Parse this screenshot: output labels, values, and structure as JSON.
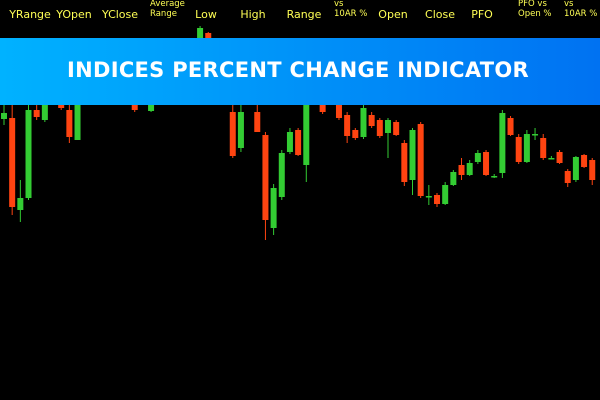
{
  "header": {
    "columns": [
      [
        "YRange"
      ],
      [
        "YOpen"
      ],
      [
        "YClose"
      ],
      [
        "Average",
        "Range"
      ],
      [
        "Low"
      ],
      [
        "High"
      ],
      [
        "Range"
      ],
      [
        "vs",
        "10AR %"
      ],
      [
        "Open"
      ],
      [
        "Close"
      ],
      [
        "PFO"
      ],
      [
        "PFO vs",
        "Open %"
      ],
      [
        "vs",
        "10AR %"
      ]
    ]
  },
  "chart_data": {
    "type": "candlestick",
    "title": "INDICES PERCENT CHANGE INDICATOR",
    "ylim": [
      0,
      100
    ],
    "up_color": "#33cc33",
    "down_color": "#ff4411",
    "open": [
      70.25,
      70.5,
      47.5,
      50.5,
      72.5,
      70,
      null,
      73.75,
      72.5,
      65,
      null,
      null,
      null,
      null,
      null,
      null,
      73.75,
      null,
      72.25,
      null,
      null,
      null,
      null,
      null,
      90.5,
      91.75,
      null,
      null,
      72,
      63,
      null,
      72,
      66.25,
      43,
      50.75,
      62,
      67.5,
      58.75,
      null,
      73.75,
      null,
      73.75,
      71.25,
      67.5,
      65.75,
      71.25,
      70,
      66.75,
      69.5,
      64.25,
      55,
      69,
      51,
      51.25,
      49,
      53.75,
      58.75,
      56.25,
      59.5,
      62,
      56,
      56.75,
      70.5,
      65.75,
      59.5,
      66.25,
      65.5,
      60.5,
      62,
      57.25,
      55,
      61.25,
      60
    ],
    "high": [
      73.75,
      73.75,
      55,
      73.75,
      73.75,
      75,
      null,
      75,
      73.75,
      75,
      null,
      null,
      null,
      null,
      null,
      null,
      75,
      null,
      75,
      null,
      null,
      null,
      null,
      null,
      93.5,
      92,
      null,
      null,
      73.75,
      73.75,
      null,
      73.75,
      67,
      54,
      62.5,
      68,
      68,
      75,
      null,
      75,
      null,
      75,
      72,
      68,
      73.75,
      72,
      70.5,
      70.5,
      70,
      65,
      68,
      69.5,
      53.75,
      51.75,
      54.5,
      57.5,
      60.5,
      60,
      62.5,
      62.5,
      56.5,
      72.5,
      71,
      66.5,
      67.5,
      68,
      66.5,
      61,
      62.5,
      57.75,
      61,
      61.5,
      60.5
    ],
    "low": [
      68.75,
      46.25,
      44.5,
      50,
      70,
      69.5,
      null,
      72.5,
      64.25,
      65,
      null,
      null,
      null,
      null,
      null,
      null,
      72,
      null,
      72,
      null,
      null,
      null,
      null,
      null,
      90,
      90,
      null,
      null,
      60.5,
      62,
      null,
      67,
      40,
      41.25,
      50,
      61.5,
      61,
      54.5,
      null,
      71.5,
      null,
      70,
      64.25,
      65,
      65.25,
      68,
      65.5,
      60.5,
      66,
      53.5,
      51.25,
      50.5,
      48.75,
      48.25,
      48.75,
      53.5,
      55,
      56,
      59,
      56,
      55.5,
      55.5,
      66,
      59,
      59.25,
      65,
      60,
      60.25,
      59,
      53.25,
      54.5,
      58,
      53.75
    ],
    "close": [
      71.75,
      48.25,
      50.5,
      72.5,
      70.75,
      73.75,
      null,
      73,
      65.75,
      73.75,
      null,
      null,
      null,
      null,
      null,
      null,
      72.5,
      null,
      73.75,
      null,
      null,
      null,
      null,
      null,
      93,
      90.5,
      null,
      null,
      61,
      72,
      null,
      67,
      45,
      53,
      61.75,
      67,
      61.25,
      73.75,
      null,
      72,
      null,
      70.5,
      66,
      65.5,
      73,
      68.5,
      66,
      70,
      66.25,
      54.5,
      67.5,
      51,
      51,
      49,
      53.75,
      57,
      56.25,
      59.25,
      61.75,
      56.25,
      56,
      71.75,
      66.25,
      59.5,
      66.5,
      66.5,
      60.5,
      60.5,
      59.25,
      54.25,
      60.75,
      58.25,
      55
    ]
  }
}
